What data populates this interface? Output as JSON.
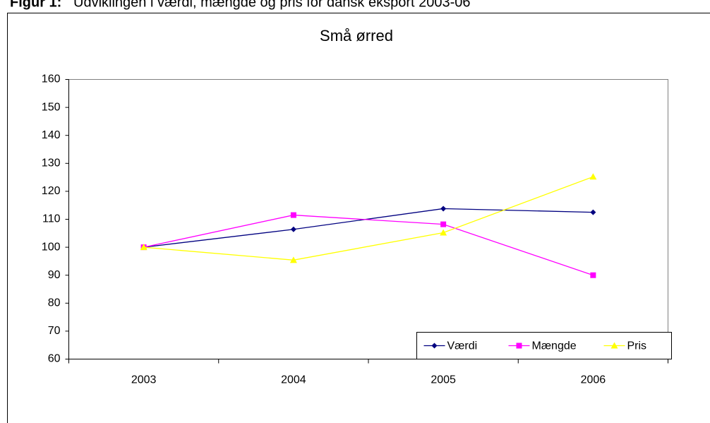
{
  "caption": {
    "label": "Figur 1:",
    "text": "Udviklingen i værdi, mængde og pris for dansk eksport 2003-06"
  },
  "chart_data": {
    "type": "line",
    "title": "Små ørred",
    "categories": [
      "2003",
      "2004",
      "2005",
      "2006"
    ],
    "series": [
      {
        "name": "Værdi",
        "color": "#000080",
        "marker": "diamond",
        "values": [
          100,
          106.4,
          113.8,
          112.5
        ]
      },
      {
        "name": "Mængde",
        "color": "#ff00ff",
        "marker": "square",
        "values": [
          100,
          111.5,
          108.2,
          90
        ]
      },
      {
        "name": "Pris",
        "color": "#ffff00",
        "marker": "triangle",
        "values": [
          100,
          95.4,
          105.2,
          125.2
        ]
      }
    ],
    "ylim": [
      60,
      160
    ],
    "yticks": [
      60,
      70,
      80,
      90,
      100,
      110,
      120,
      130,
      140,
      150,
      160
    ],
    "grid": false,
    "legend": "lower right"
  }
}
